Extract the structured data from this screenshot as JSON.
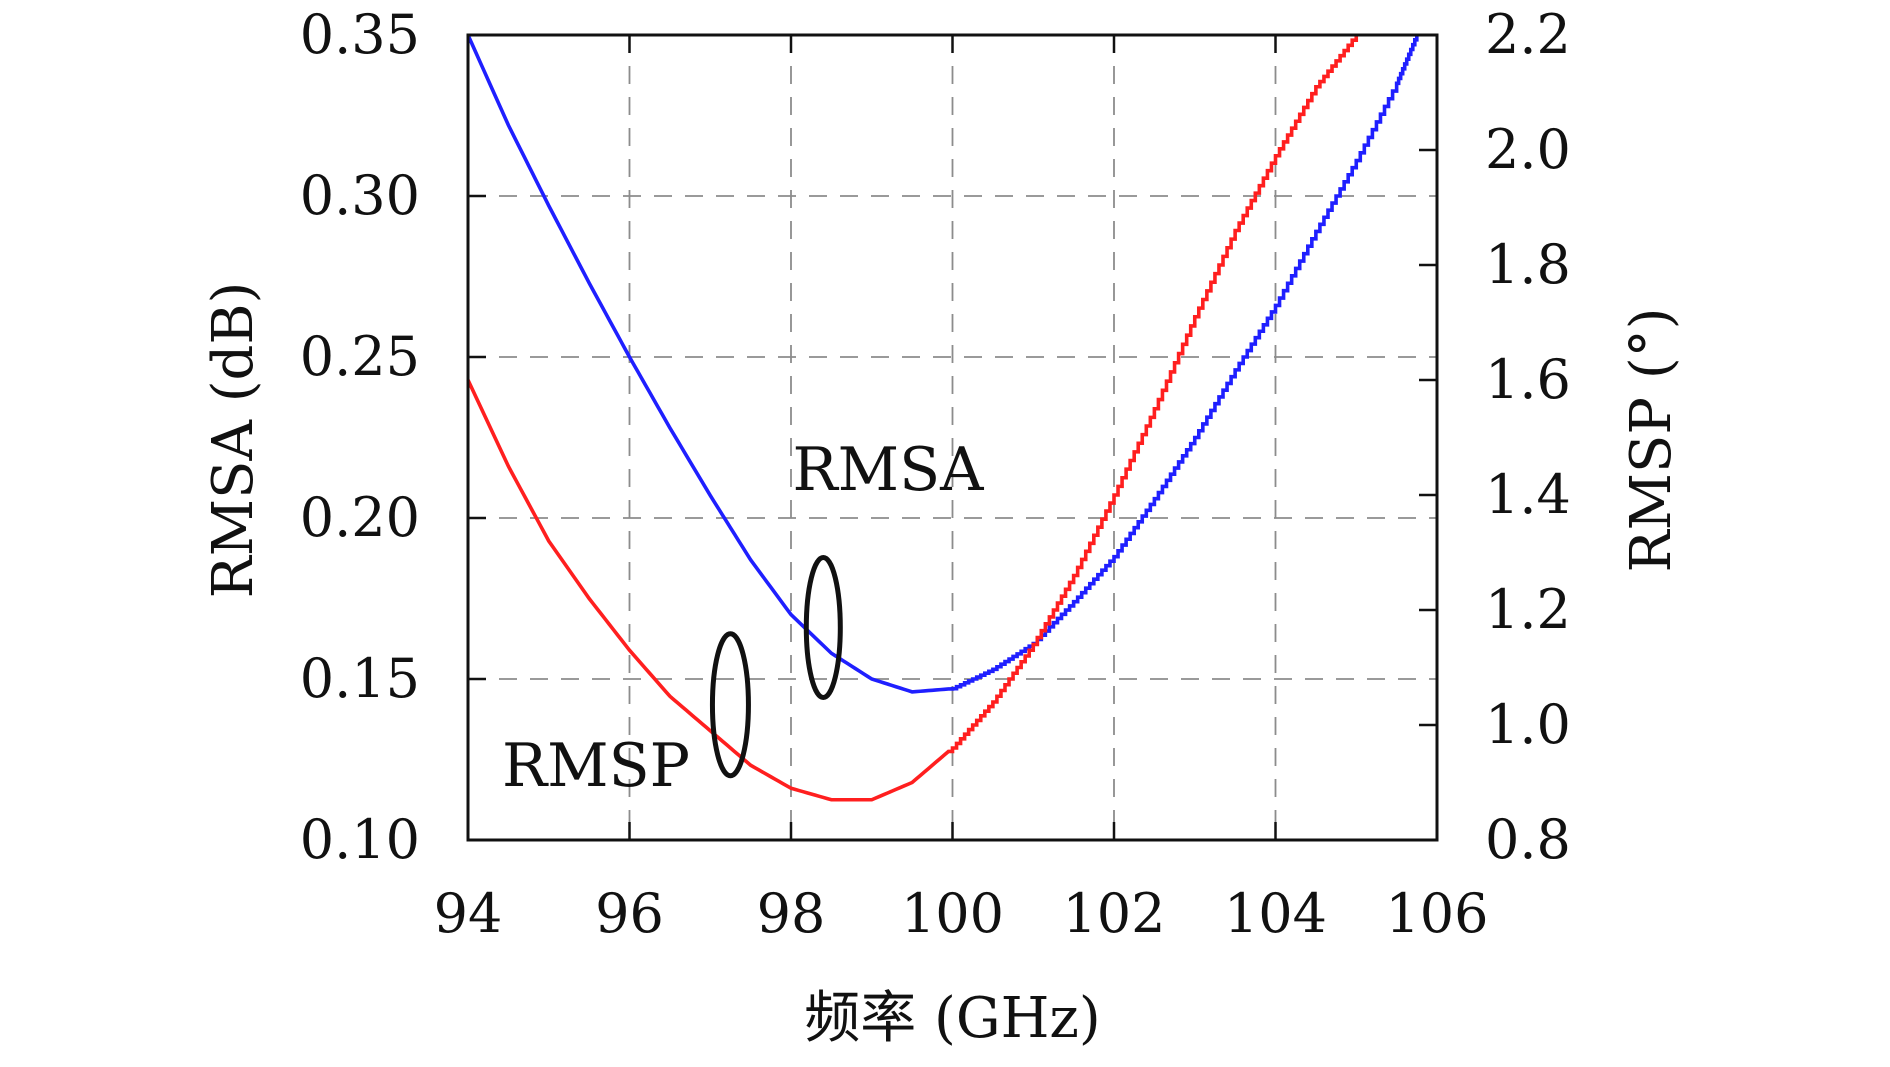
{
  "chart_data": {
    "type": "line",
    "xlabel": "频率 (GHz)",
    "ylabel_left": "RMSA (dB)",
    "ylabel_right": "RMSP (°)",
    "xlim": [
      94,
      106
    ],
    "ylim_left": [
      0.1,
      0.35
    ],
    "ylim_right": [
      0.8,
      2.2
    ],
    "xticks": [
      "94",
      "96",
      "98",
      "100",
      "102",
      "104",
      "106"
    ],
    "yticks_left": [
      "0.10",
      "0.15",
      "0.20",
      "0.25",
      "0.30",
      "0.35"
    ],
    "yticks_right": [
      "0.8",
      "1.0",
      "1.2",
      "1.4",
      "1.6",
      "1.8",
      "2.0",
      "2.2"
    ],
    "grid": true,
    "series": [
      {
        "name": "RMSA",
        "axis": "left",
        "color": "#1f1fff",
        "x": [
          94.0,
          94.5,
          95.0,
          95.5,
          96.0,
          96.5,
          97.0,
          97.5,
          98.0,
          98.5,
          99.0,
          99.5,
          100.0,
          100.5,
          101.0,
          101.5,
          102.0,
          102.5,
          103.0,
          103.5,
          104.0,
          104.5,
          105.0,
          105.5,
          105.75
        ],
        "y": [
          0.35,
          0.322,
          0.297,
          0.273,
          0.25,
          0.228,
          0.207,
          0.187,
          0.17,
          0.158,
          0.15,
          0.146,
          0.147,
          0.153,
          0.161,
          0.174,
          0.188,
          0.206,
          0.225,
          0.246,
          0.266,
          0.289,
          0.311,
          0.335,
          0.35
        ]
      },
      {
        "name": "RMSP",
        "axis": "right",
        "color": "#ff1f1f",
        "x": [
          94.0,
          94.5,
          95.0,
          95.5,
          96.0,
          96.5,
          97.0,
          97.5,
          98.0,
          98.5,
          99.0,
          99.5,
          100.0,
          100.5,
          101.0,
          101.5,
          102.0,
          102.5,
          103.0,
          103.5,
          104.0,
          104.5,
          105.0
        ],
        "y": [
          1.6,
          1.45,
          1.32,
          1.22,
          1.13,
          1.05,
          0.99,
          0.93,
          0.89,
          0.87,
          0.87,
          0.9,
          0.96,
          1.04,
          1.14,
          1.26,
          1.4,
          1.55,
          1.71,
          1.86,
          1.99,
          2.11,
          2.2
        ]
      }
    ],
    "annotations": [
      {
        "text": "RMSA",
        "x": 98.4,
        "y": 0.166
      },
      {
        "text": "RMSP",
        "x": 97.25,
        "y": 0.142
      }
    ]
  }
}
